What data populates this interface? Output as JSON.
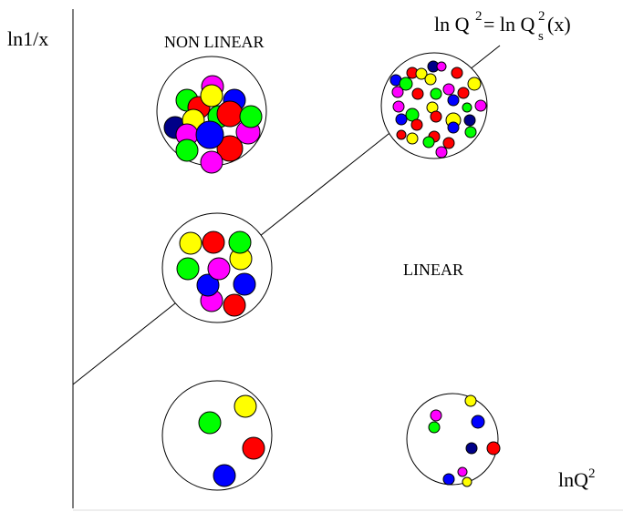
{
  "axes": {
    "y_label": "ln1/x",
    "x_label": {
      "base": "lnQ",
      "sup": "2"
    }
  },
  "regions": {
    "nonlinear": "NON LINEAR",
    "linear": "LINEAR"
  },
  "saturation_line": {
    "label": {
      "lhs": "ln Q",
      "lhs_sup": "2",
      "rhs": "= ln Q",
      "rhs_sup": "2",
      "rhs_sub": "s",
      "rhs_arg": "(x)"
    }
  }
}
